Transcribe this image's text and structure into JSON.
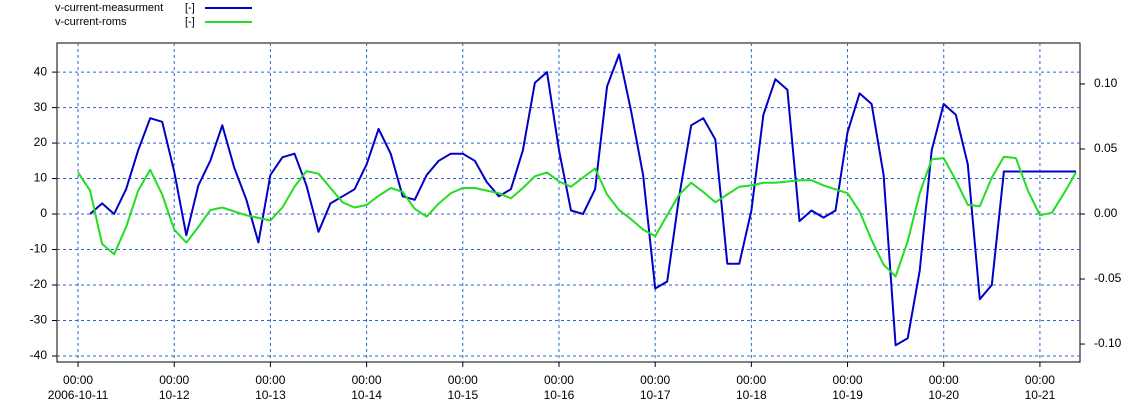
{
  "chart_data": {
    "type": "line",
    "x": [
      "2006-10-11 00:00",
      "2006-10-11 03:00",
      "2006-10-11 06:00",
      "2006-10-11 09:00",
      "2006-10-11 12:00",
      "2006-10-11 15:00",
      "2006-10-11 18:00",
      "2006-10-11 21:00",
      "2006-10-12 00:00",
      "2006-10-12 03:00",
      "2006-10-12 06:00",
      "2006-10-12 09:00",
      "2006-10-12 12:00",
      "2006-10-12 15:00",
      "2006-10-12 18:00",
      "2006-10-12 21:00",
      "2006-10-13 00:00",
      "2006-10-13 03:00",
      "2006-10-13 06:00",
      "2006-10-13 09:00",
      "2006-10-13 12:00",
      "2006-10-13 15:00",
      "2006-10-13 18:00",
      "2006-10-13 21:00",
      "2006-10-14 00:00",
      "2006-10-14 03:00",
      "2006-10-14 06:00",
      "2006-10-14 09:00",
      "2006-10-14 12:00",
      "2006-10-14 15:00",
      "2006-10-14 18:00",
      "2006-10-14 21:00",
      "2006-10-15 00:00",
      "2006-10-15 03:00",
      "2006-10-15 06:00",
      "2006-10-15 09:00",
      "2006-10-15 12:00",
      "2006-10-15 15:00",
      "2006-10-15 18:00",
      "2006-10-15 21:00",
      "2006-10-16 00:00",
      "2006-10-16 03:00",
      "2006-10-16 06:00",
      "2006-10-16 09:00",
      "2006-10-16 12:00",
      "2006-10-16 15:00",
      "2006-10-16 18:00",
      "2006-10-16 21:00",
      "2006-10-17 00:00",
      "2006-10-17 03:00",
      "2006-10-17 06:00",
      "2006-10-17 09:00",
      "2006-10-17 12:00",
      "2006-10-17 15:00",
      "2006-10-17 18:00",
      "2006-10-17 21:00",
      "2006-10-18 00:00",
      "2006-10-18 03:00",
      "2006-10-18 06:00",
      "2006-10-18 09:00",
      "2006-10-18 12:00",
      "2006-10-18 15:00",
      "2006-10-18 18:00",
      "2006-10-18 21:00",
      "2006-10-19 00:00",
      "2006-10-19 03:00",
      "2006-10-19 06:00",
      "2006-10-19 09:00",
      "2006-10-19 12:00",
      "2006-10-19 15:00",
      "2006-10-19 18:00",
      "2006-10-19 21:00",
      "2006-10-20 00:00",
      "2006-10-20 03:00",
      "2006-10-20 06:00",
      "2006-10-20 09:00",
      "2006-10-20 12:00",
      "2006-10-20 15:00",
      "2006-10-20 18:00",
      "2006-10-20 21:00",
      "2006-10-21 00:00",
      "2006-10-21 03:00",
      "2006-10-21 06:00",
      "2006-10-21 09:00"
    ],
    "series": [
      {
        "name": "v-current-measurment",
        "unit": "[-]",
        "color": "#0000c8",
        "axis": "y",
        "values": [
          null,
          0,
          3,
          0,
          7,
          18,
          27,
          26,
          12,
          -6,
          8,
          15,
          25,
          13,
          4,
          -8,
          11,
          16,
          17,
          8,
          -5,
          3,
          5,
          7,
          14,
          24,
          17,
          5,
          4,
          11,
          15,
          17,
          17,
          15,
          9,
          5,
          7,
          18,
          37,
          40,
          18,
          1,
          0,
          7,
          36,
          45,
          29,
          11,
          -21,
          -19,
          5,
          25,
          27,
          21,
          -14,
          -14,
          1,
          28,
          38,
          35,
          -2,
          1,
          -1,
          1,
          23,
          34,
          31,
          11,
          -37,
          -35,
          -16,
          18,
          31,
          28,
          14,
          -24,
          -20,
          12,
          12,
          12,
          12,
          12,
          12,
          12
        ]
      },
      {
        "name": "v-current-roms",
        "unit": "[-]",
        "color": "#22dd22",
        "axis": "y2",
        "values": [
          0.032,
          0.018,
          -0.023,
          -0.031,
          -0.01,
          0.018,
          0.034,
          0.015,
          -0.012,
          -0.022,
          -0.01,
          0.003,
          0.005,
          0.002,
          -0.001,
          -0.003,
          -0.005,
          0.005,
          0.021,
          0.033,
          0.031,
          0.02,
          0.009,
          0.005,
          0.007,
          0.014,
          0.02,
          0.017,
          0.004,
          -0.002,
          0.008,
          0.016,
          0.02,
          0.02,
          0.018,
          0.016,
          0.012,
          0.02,
          0.029,
          0.032,
          0.025,
          0.021,
          0.028,
          0.035,
          0.015,
          0.003,
          -0.004,
          -0.012,
          -0.017,
          -0.001,
          0.015,
          0.024,
          0.017,
          0.009,
          0.015,
          0.021,
          0.022,
          0.024,
          0.024,
          0.025,
          0.026,
          0.026,
          0.022,
          0.019,
          0.016,
          0.002,
          -0.02,
          -0.039,
          -0.048,
          -0.021,
          0.016,
          0.042,
          0.043,
          0.026,
          0.007,
          0.006,
          0.028,
          0.044,
          0.043,
          0.018,
          -0.001,
          0.001,
          0.016,
          0.032
        ]
      }
    ],
    "xlim": [
      "2006-10-10 18:45",
      "2006-10-21 10:00"
    ],
    "xticks": [
      {
        "value": "2006-10-11 00:00",
        "label": [
          "00:00",
          "2006-10-11"
        ]
      },
      {
        "value": "2006-10-12 00:00",
        "label": [
          "00:00",
          "10-12"
        ]
      },
      {
        "value": "2006-10-13 00:00",
        "label": [
          "00:00",
          "10-13"
        ]
      },
      {
        "value": "2006-10-14 00:00",
        "label": [
          "00:00",
          "10-14"
        ]
      },
      {
        "value": "2006-10-15 00:00",
        "label": [
          "00:00",
          "10-15"
        ]
      },
      {
        "value": "2006-10-16 00:00",
        "label": [
          "00:00",
          "10-16"
        ]
      },
      {
        "value": "2006-10-17 00:00",
        "label": [
          "00:00",
          "10-17"
        ]
      },
      {
        "value": "2006-10-18 00:00",
        "label": [
          "00:00",
          "10-18"
        ]
      },
      {
        "value": "2006-10-19 00:00",
        "label": [
          "00:00",
          "10-19"
        ]
      },
      {
        "value": "2006-10-20 00:00",
        "label": [
          "00:00",
          "10-20"
        ]
      },
      {
        "value": "2006-10-21 00:00",
        "label": [
          "00:00",
          "10-21"
        ]
      }
    ],
    "ylim": [
      -41.7,
      48.2
    ],
    "yticks": [
      -40,
      -30,
      -20,
      -10,
      0,
      10,
      20,
      30,
      40
    ],
    "y2lim": [
      -0.1138,
      0.1315
    ],
    "y2ticks": [
      {
        "value": -0.1,
        "label": "-0.10"
      },
      {
        "value": -0.05,
        "label": "-0.05"
      },
      {
        "value": 0,
        "label": "0.00"
      },
      {
        "value": 0.05,
        "label": "0.05"
      },
      {
        "value": 0.1,
        "label": "0.10"
      }
    ],
    "grid": true
  }
}
